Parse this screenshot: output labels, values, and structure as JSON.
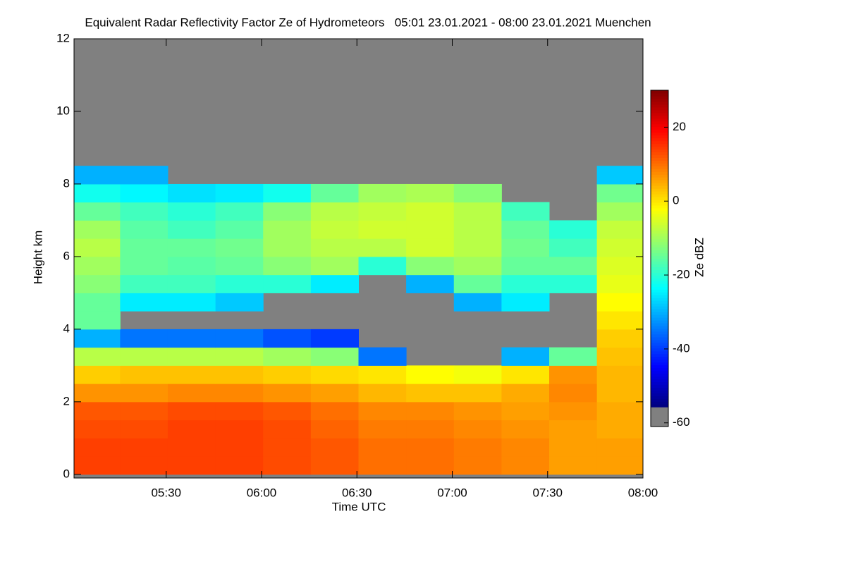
{
  "chart_data": {
    "type": "heatmap",
    "title": "Equivalent Radar Reflectivity Factor Ze of Hydrometeors   05:01 23.01.2021 - 08:00 23.01.2021 Muenchen",
    "x_label": "Time UTC",
    "y_label": "Height km",
    "colorbar_label": "Ze dBZ",
    "colormap": "jet",
    "background": "#808080",
    "xlim": [
      "05:01",
      "08:00"
    ],
    "xticks": [
      "05:30",
      "06:00",
      "06:30",
      "07:00",
      "07:30",
      "08:00"
    ],
    "ylim": [
      -0.1,
      12
    ],
    "yticks": [
      0,
      2,
      4,
      6,
      8,
      10,
      12
    ],
    "zlim": [
      -61,
      30
    ],
    "zticks": [
      -60,
      -40,
      -20,
      0,
      20
    ],
    "x": [
      "05:08",
      "05:23",
      "05:38",
      "05:53",
      "06:08",
      "06:23",
      "06:38",
      "06:53",
      "07:08",
      "07:23",
      "07:38",
      "07:53"
    ],
    "y": [
      0.25,
      0.75,
      1.25,
      1.75,
      2.25,
      2.75,
      3.25,
      3.75,
      4.25,
      4.75,
      5.25,
      5.75,
      6.25,
      6.75,
      7.25,
      7.75,
      8.25,
      8.75,
      9.25,
      9.75,
      10.25,
      10.75,
      11.25,
      11.75
    ],
    "z": [
      [
        14,
        14,
        14,
        14,
        13,
        12,
        10,
        10,
        9,
        8,
        6,
        6
      ],
      [
        14,
        14,
        14,
        14,
        13,
        12,
        10,
        10,
        9,
        8,
        6,
        6
      ],
      [
        13,
        13,
        14,
        14,
        13,
        11,
        9,
        9,
        8,
        7,
        6,
        5
      ],
      [
        12,
        12,
        13,
        13,
        12,
        10,
        8,
        8,
        7,
        6,
        7,
        5
      ],
      [
        7,
        7,
        8,
        8,
        7,
        6,
        4,
        3,
        3,
        5,
        8,
        4
      ],
      [
        2,
        3,
        3,
        3,
        2,
        1,
        0,
        -2,
        -3,
        0,
        7,
        4
      ],
      [
        -8,
        -8,
        -8,
        -8,
        -10,
        -12,
        -35,
        null,
        null,
        -30,
        -15,
        3
      ],
      [
        -30,
        -35,
        -35,
        -35,
        -38,
        -40,
        null,
        null,
        null,
        null,
        null,
        2
      ],
      [
        -15,
        null,
        null,
        null,
        null,
        null,
        null,
        null,
        null,
        null,
        null,
        0
      ],
      [
        -15,
        -25,
        -25,
        -28,
        null,
        null,
        null,
        null,
        -30,
        -25,
        null,
        -2
      ],
      [
        -12,
        -18,
        -18,
        -20,
        -20,
        -25,
        null,
        -30,
        -15,
        -20,
        -20,
        -4
      ],
      [
        -10,
        -15,
        -16,
        -15,
        -12,
        -10,
        -20,
        -12,
        -10,
        -15,
        -15,
        -5
      ],
      [
        -8,
        -15,
        -15,
        -14,
        -10,
        -8,
        -8,
        -6,
        -8,
        -14,
        -18,
        -6
      ],
      [
        -10,
        -16,
        -18,
        -16,
        -10,
        -7,
        -6,
        -6,
        -8,
        -15,
        -20,
        -7
      ],
      [
        -15,
        -18,
        -20,
        -18,
        -12,
        -8,
        -7,
        -6,
        -8,
        -18,
        null,
        -10
      ],
      [
        -22,
        -24,
        -26,
        -25,
        -22,
        -15,
        -10,
        -9,
        -12,
        null,
        null,
        -14
      ],
      [
        -30,
        -30,
        null,
        null,
        null,
        null,
        null,
        null,
        null,
        null,
        null,
        -28
      ],
      [
        null,
        null,
        null,
        null,
        null,
        null,
        null,
        null,
        null,
        null,
        null,
        null
      ],
      [
        null,
        null,
        null,
        null,
        null,
        null,
        null,
        null,
        null,
        null,
        null,
        null
      ],
      [
        null,
        null,
        null,
        null,
        null,
        null,
        null,
        null,
        null,
        null,
        null,
        null
      ],
      [
        null,
        null,
        null,
        null,
        null,
        null,
        null,
        null,
        null,
        null,
        null,
        null
      ],
      [
        null,
        null,
        null,
        null,
        null,
        null,
        null,
        null,
        null,
        null,
        null,
        null
      ],
      [
        null,
        null,
        null,
        null,
        null,
        null,
        null,
        null,
        null,
        null,
        null,
        null
      ],
      [
        null,
        null,
        null,
        null,
        null,
        null,
        null,
        null,
        null,
        null,
        null,
        null
      ]
    ]
  }
}
